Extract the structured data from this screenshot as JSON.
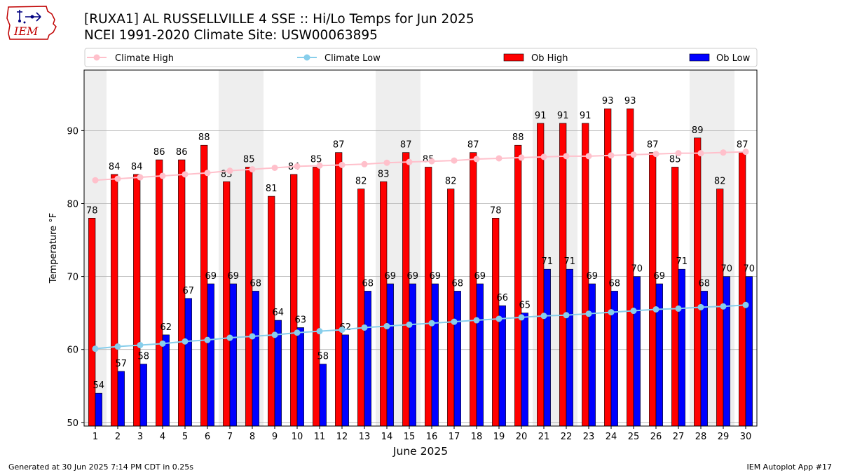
{
  "header": {
    "title": "[RUXA1] AL RUSSELLVILLE 4 SSE :: Hi/Lo Temps for Jun 2025",
    "subtitle": "NCEI 1991-2020 Climate Site: USW00063895",
    "logo_text": "IEM"
  },
  "footer": {
    "generated": "Generated at 30 Jun 2025 7:14 PM CDT in 0.25s",
    "app": "IEM Autoplot App #17"
  },
  "colors": {
    "ob_high": "#ff0000",
    "ob_low": "#0000ff",
    "climate_high": "#ffc0cb",
    "climate_low": "#87ceeb",
    "weekend_shade": "#eeeeee"
  },
  "chart_data": {
    "type": "bar",
    "xlabel": "June 2025",
    "ylabel": "Temperature °F",
    "ylim": [
      49.5,
      98.3
    ],
    "yticks": [
      50,
      60,
      70,
      80,
      90
    ],
    "grid": "horizontal",
    "legend_position": "top",
    "days": [
      1,
      2,
      3,
      4,
      5,
      6,
      7,
      8,
      9,
      10,
      11,
      12,
      13,
      14,
      15,
      16,
      17,
      18,
      19,
      20,
      21,
      22,
      23,
      24,
      25,
      26,
      27,
      28,
      29,
      30
    ],
    "weekend_shading": [
      [
        1,
        1
      ],
      [
        7,
        8
      ],
      [
        14,
        15
      ],
      [
        21,
        22
      ],
      [
        28,
        29
      ]
    ],
    "series": [
      {
        "name": "Ob High",
        "kind": "bar",
        "color": "#ff0000",
        "values": [
          78,
          84,
          84,
          86,
          86,
          88,
          83,
          85,
          81,
          84,
          85,
          87,
          82,
          83,
          87,
          85,
          82,
          87,
          78,
          88,
          91,
          91,
          91,
          93,
          93,
          87,
          85,
          89,
          82,
          87
        ]
      },
      {
        "name": "Ob Low",
        "kind": "bar",
        "color": "#0000ff",
        "values": [
          54,
          57,
          58,
          62,
          67,
          69,
          69,
          68,
          64,
          63,
          58,
          62,
          68,
          69,
          69,
          69,
          68,
          69,
          66,
          65,
          71,
          71,
          69,
          68,
          70,
          69,
          71,
          68,
          70,
          70
        ]
      },
      {
        "name": "Climate High",
        "kind": "line",
        "color": "#ffc0cb",
        "values": [
          83.2,
          83.4,
          83.6,
          83.8,
          84.0,
          84.2,
          84.5,
          84.7,
          84.9,
          85.1,
          85.2,
          85.3,
          85.4,
          85.6,
          85.7,
          85.8,
          85.9,
          86.1,
          86.2,
          86.3,
          86.4,
          86.5,
          86.5,
          86.6,
          86.7,
          86.8,
          86.9,
          86.9,
          87.0,
          87.1
        ]
      },
      {
        "name": "Climate Low",
        "kind": "line",
        "color": "#87ceeb",
        "values": [
          60.1,
          60.4,
          60.6,
          60.8,
          61.1,
          61.3,
          61.6,
          61.8,
          62.0,
          62.3,
          62.5,
          62.7,
          63.0,
          63.2,
          63.4,
          63.6,
          63.8,
          64.0,
          64.2,
          64.4,
          64.6,
          64.7,
          64.9,
          65.1,
          65.3,
          65.5,
          65.6,
          65.8,
          65.9,
          66.1
        ]
      }
    ]
  }
}
